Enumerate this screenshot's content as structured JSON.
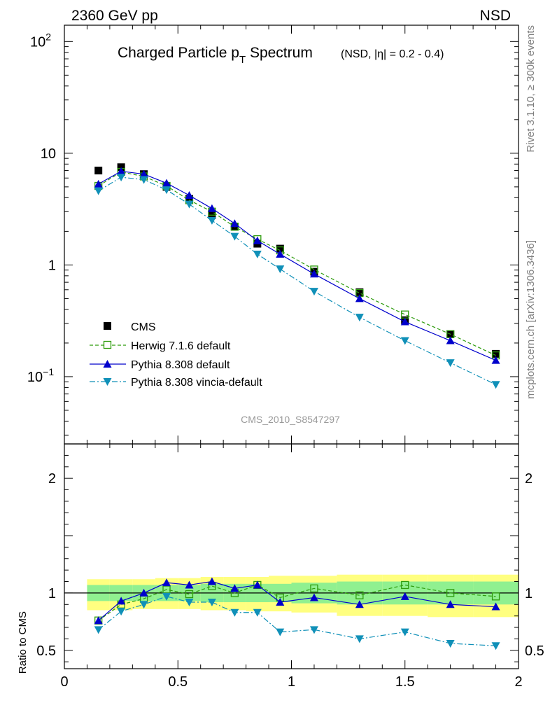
{
  "header": {
    "left": "2360 GeV pp",
    "right": "NSD"
  },
  "side_labels": {
    "rivet": "Rivet 3.1.10, ≥ 300k events",
    "mcplots": "mcplots.cern.ch [arXiv:1306.3436]"
  },
  "chart_data": [
    {
      "type": "scatter",
      "title": "Charged Particle p",
      "title_sub": "T",
      "title_tail": " Spectrum",
      "subtitle": "(NSD, |η| = 0.2 - 0.4)",
      "watermark": "CMS_2010_S8547297",
      "xlim": [
        0,
        2
      ],
      "ylim": [
        0.025,
        140
      ],
      "yscale": "log",
      "y_ticks": [
        {
          "value": 100,
          "label": "10",
          "exp": "2"
        },
        {
          "value": 10,
          "label": "10",
          "exp": ""
        },
        {
          "value": 1,
          "label": "1",
          "exp": ""
        },
        {
          "value": 0.1,
          "label": "10",
          "exp": "−1"
        }
      ],
      "x": [
        0.15,
        0.25,
        0.35,
        0.45,
        0.55,
        0.65,
        0.75,
        0.85,
        0.95,
        1.1,
        1.3,
        1.5,
        1.7,
        1.9
      ],
      "legend_position": "lower-left",
      "series": [
        {
          "name": "CMS",
          "marker": "square-filled",
          "color": "#000000",
          "values": [
            7.0,
            7.5,
            6.5,
            5.0,
            3.9,
            2.8,
            2.2,
            1.55,
            1.4,
            0.87,
            0.57,
            0.32,
            0.24,
            0.16
          ]
        },
        {
          "name": "Herwig 7.1.6 default",
          "marker": "square-open",
          "color": "#2e9c0d",
          "dash": "5,3",
          "values": [
            5.1,
            6.8,
            6.2,
            5.1,
            3.8,
            3.0,
            2.2,
            1.7,
            1.35,
            0.91,
            0.56,
            0.36,
            0.24,
            0.155
          ]
        },
        {
          "name": "Pythia 8.308 default",
          "marker": "triangle-up",
          "color": "#0000cc",
          "dash": "",
          "values": [
            5.3,
            6.9,
            6.5,
            5.4,
            4.2,
            3.2,
            2.35,
            1.65,
            1.25,
            0.83,
            0.5,
            0.31,
            0.21,
            0.14
          ]
        },
        {
          "name": "Pythia 8.308 vincia-default",
          "marker": "triangle-down",
          "color": "#1090b8",
          "dash": "8,3,2,3",
          "values": [
            4.6,
            6.1,
            5.8,
            4.7,
            3.5,
            2.5,
            1.8,
            1.25,
            0.92,
            0.58,
            0.34,
            0.21,
            0.133,
            0.085
          ]
        }
      ]
    },
    {
      "type": "line",
      "ylabel": "Ratio to CMS",
      "xlim": [
        0,
        2
      ],
      "ylim": [
        0.34,
        2.3
      ],
      "x_ticks": [
        {
          "value": 0,
          "label": "0"
        },
        {
          "value": 0.5,
          "label": "0.5"
        },
        {
          "value": 1,
          "label": "1"
        },
        {
          "value": 1.5,
          "label": "1.5"
        },
        {
          "value": 2,
          "label": "2"
        }
      ],
      "y_ticks": [
        {
          "value": 2,
          "label": "2"
        },
        {
          "value": 1,
          "label": "1"
        },
        {
          "value": 0.5,
          "label": "0.5"
        }
      ],
      "x": [
        0.15,
        0.25,
        0.35,
        0.45,
        0.55,
        0.65,
        0.75,
        0.85,
        0.95,
        1.1,
        1.3,
        1.5,
        1.7,
        1.9
      ],
      "bands": [
        {
          "x0": 0.1,
          "x1": 0.2,
          "y_lo": 0.85,
          "y_hi": 1.12,
          "g_lo": 0.93,
          "g_hi": 1.07
        },
        {
          "x0": 0.2,
          "x1": 0.3,
          "y_lo": 0.85,
          "y_hi": 1.12,
          "g_lo": 0.93,
          "g_hi": 1.07
        },
        {
          "x0": 0.3,
          "x1": 0.4,
          "y_lo": 0.86,
          "y_hi": 1.12,
          "g_lo": 0.93,
          "g_hi": 1.07
        },
        {
          "x0": 0.4,
          "x1": 0.5,
          "y_lo": 0.86,
          "y_hi": 1.13,
          "g_lo": 0.93,
          "g_hi": 1.07
        },
        {
          "x0": 0.5,
          "x1": 0.6,
          "y_lo": 0.86,
          "y_hi": 1.13,
          "g_lo": 0.93,
          "g_hi": 1.07
        },
        {
          "x0": 0.6,
          "x1": 0.7,
          "y_lo": 0.85,
          "y_hi": 1.14,
          "g_lo": 0.92,
          "g_hi": 1.08
        },
        {
          "x0": 0.7,
          "x1": 0.8,
          "y_lo": 0.85,
          "y_hi": 1.14,
          "g_lo": 0.92,
          "g_hi": 1.08
        },
        {
          "x0": 0.8,
          "x1": 0.9,
          "y_lo": 0.84,
          "y_hi": 1.14,
          "g_lo": 0.92,
          "g_hi": 1.08
        },
        {
          "x0": 0.9,
          "x1": 1.0,
          "y_lo": 0.84,
          "y_hi": 1.15,
          "g_lo": 0.92,
          "g_hi": 1.08
        },
        {
          "x0": 1.0,
          "x1": 1.2,
          "y_lo": 0.83,
          "y_hi": 1.15,
          "g_lo": 0.91,
          "g_hi": 1.09
        },
        {
          "x0": 1.2,
          "x1": 1.4,
          "y_lo": 0.8,
          "y_hi": 1.16,
          "g_lo": 0.9,
          "g_hi": 1.1
        },
        {
          "x0": 1.4,
          "x1": 1.6,
          "y_lo": 0.8,
          "y_hi": 1.16,
          "g_lo": 0.9,
          "g_hi": 1.1
        },
        {
          "x0": 1.6,
          "x1": 1.8,
          "y_lo": 0.79,
          "y_hi": 1.16,
          "g_lo": 0.9,
          "g_hi": 1.1
        },
        {
          "x0": 1.8,
          "x1": 2.0,
          "y_lo": 0.79,
          "y_hi": 1.16,
          "g_lo": 0.9,
          "g_hi": 1.1
        }
      ],
      "series": [
        {
          "name": "Herwig 7.1.6 default",
          "values": [
            0.76,
            0.9,
            0.95,
            1.03,
            0.99,
            1.06,
            1.0,
            1.07,
            0.96,
            1.04,
            0.98,
            1.07,
            1.0,
            0.97
          ]
        },
        {
          "name": "Pythia 8.308 default",
          "values": [
            0.76,
            0.93,
            1.0,
            1.09,
            1.07,
            1.1,
            1.04,
            1.07,
            0.92,
            0.96,
            0.9,
            0.97,
            0.9,
            0.88
          ]
        },
        {
          "name": "Pythia 8.308 vincia-default",
          "values": [
            0.68,
            0.84,
            0.9,
            0.97,
            0.92,
            0.92,
            0.83,
            0.83,
            0.66,
            0.68,
            0.6,
            0.66,
            0.56,
            0.54
          ]
        }
      ]
    }
  ]
}
